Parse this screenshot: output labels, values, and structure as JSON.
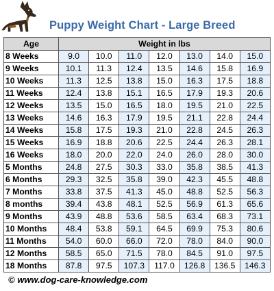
{
  "title": "Puppy Weight Chart - Large Breed",
  "footer": "© www.dog-care-knowledge.com",
  "logo_icon": "german-shepherd-icon",
  "colors": {
    "title": "#3a6aa8",
    "header_bg": "#d9d9d9",
    "column_tint": "#e6f0fb"
  },
  "chart_data": {
    "type": "table",
    "title": "Puppy Weight Chart - Large Breed",
    "row_header_label": "Age",
    "value_header_label": "Weight in lbs",
    "rows": [
      {
        "age": "8 Weeks",
        "values": [
          "9.0",
          "10.0",
          "11.0",
          "12.0",
          "13.0",
          "14.0",
          "15.0"
        ]
      },
      {
        "age": "9 Weeks",
        "values": [
          "10.1",
          "11.3",
          "12.4",
          "13.5",
          "14.6",
          "15.8",
          "16.9"
        ]
      },
      {
        "age": "10 Weeks",
        "values": [
          "11.3",
          "12.5",
          "13.8",
          "15.0",
          "16.3",
          "17.5",
          "18.8"
        ]
      },
      {
        "age": "11 Weeks",
        "values": [
          "12.4",
          "13.8",
          "15.1",
          "16.5",
          "17.9",
          "19.3",
          "20.6"
        ]
      },
      {
        "age": "12 Weeks",
        "values": [
          "13.5",
          "15.0",
          "16.5",
          "18.0",
          "19.5",
          "21.0",
          "22.5"
        ]
      },
      {
        "age": "13 Weeks",
        "values": [
          "14.6",
          "16.3",
          "17.9",
          "19.5",
          "21.1",
          "22.8",
          "24.4"
        ]
      },
      {
        "age": "14 Weeks",
        "values": [
          "15.8",
          "17.5",
          "19.3",
          "21.0",
          "22.8",
          "24.5",
          "26.3"
        ]
      },
      {
        "age": "15 Weeks",
        "values": [
          "16.9",
          "18.8",
          "20.6",
          "22.5",
          "24.4",
          "26.3",
          "28.1"
        ]
      },
      {
        "age": "16 Weeks",
        "values": [
          "18.0",
          "20.0",
          "22.0",
          "24.0",
          "26.0",
          "28.0",
          "30.0"
        ]
      },
      {
        "age": "5 Months",
        "values": [
          "24.8",
          "27.5",
          "30.3",
          "33.0",
          "35.8",
          "38.5",
          "41.3"
        ]
      },
      {
        "age": "6 Months",
        "values": [
          "29.3",
          "32.5",
          "35.8",
          "39.0",
          "42.3",
          "45.5",
          "48.8"
        ]
      },
      {
        "age": "7 Months",
        "values": [
          "33.8",
          "37.5",
          "41.3",
          "45.0",
          "48.8",
          "52.5",
          "56.3"
        ]
      },
      {
        "age": "8 months",
        "values": [
          "39.4",
          "43.8",
          "48.1",
          "52.5",
          "56.9",
          "61.3",
          "65.6"
        ]
      },
      {
        "age": "9 Months",
        "values": [
          "43.9",
          "48.8",
          "53.6",
          "58.5",
          "63.4",
          "68.3",
          "73.1"
        ]
      },
      {
        "age": "10 Months",
        "values": [
          "48.4",
          "53.8",
          "59.1",
          "64.5",
          "69.9",
          "75.3",
          "80.6"
        ]
      },
      {
        "age": "11 Months",
        "values": [
          "54.0",
          "60.0",
          "66.0",
          "72.0",
          "78.0",
          "84.0",
          "90.0"
        ]
      },
      {
        "age": "12 Months",
        "values": [
          "58.5",
          "65.0",
          "71.5",
          "78.0",
          "84.5",
          "91.0",
          "97.5"
        ]
      },
      {
        "age": "18 Months",
        "values": [
          "87.8",
          "97.5",
          "107.3",
          "117.0",
          "126.8",
          "136.5",
          "146.3"
        ]
      }
    ]
  }
}
